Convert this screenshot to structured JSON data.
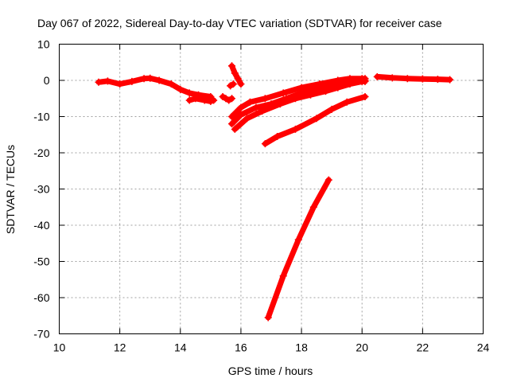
{
  "chart_data": {
    "type": "scatter",
    "title": "Day 067 of 2022, Sidereal Day-to-day VTEC variation (SDTVAR) for receiver case",
    "xlabel": "GPS time / hours",
    "ylabel": "SDTVAR / TECUs",
    "xlim": [
      10,
      24
    ],
    "ylim": [
      -70,
      10
    ],
    "xticks": [
      10,
      12,
      14,
      16,
      18,
      20,
      22,
      24
    ],
    "yticks": [
      10,
      0,
      -10,
      -20,
      -30,
      -40,
      -50,
      -60,
      -70
    ],
    "grid": true,
    "marker": "+",
    "color": "#ff0000",
    "series": [
      {
        "x": [
          11.3,
          11.6,
          12.0,
          12.4,
          12.8,
          13.0,
          13.3,
          13.7,
          14.0,
          14.3,
          14.6,
          15.0
        ],
        "y": [
          -0.5,
          -0.2,
          -1.0,
          -0.3,
          0.5,
          0.6,
          0.0,
          -1.0,
          -2.5,
          -3.5,
          -4.0,
          -4.5
        ]
      },
      {
        "x": [
          14.3,
          14.5,
          14.8,
          15.0,
          15.1
        ],
        "y": [
          -5.5,
          -5.0,
          -5.5,
          -5.8,
          -5.5
        ]
      },
      {
        "x": [
          15.4,
          15.5,
          15.6,
          15.7
        ],
        "y": [
          -4.5,
          -5.0,
          -5.5,
          -5.0
        ]
      },
      {
        "x": [
          15.7,
          15.8,
          15.9,
          16.0
        ],
        "y": [
          4.0,
          2.0,
          0.5,
          -1.0
        ]
      },
      {
        "x": [
          15.65,
          15.75
        ],
        "y": [
          -1.5,
          -1.0
        ]
      },
      {
        "x": [
          15.7,
          16.0,
          16.3,
          16.8,
          17.4,
          18.0,
          18.6,
          19.2,
          19.6,
          20.0,
          20.1
        ],
        "y": [
          -10.0,
          -7.5,
          -6.0,
          -5.0,
          -3.5,
          -2.0,
          -1.0,
          0.0,
          0.5,
          0.5,
          0.5
        ]
      },
      {
        "x": [
          15.7,
          16.0,
          16.5,
          17.0,
          17.5,
          18.0,
          18.5,
          19.0,
          19.5,
          20.0,
          20.1
        ],
        "y": [
          -12.0,
          -9.5,
          -7.5,
          -6.5,
          -5.0,
          -3.5,
          -2.5,
          -1.5,
          -0.5,
          0.0,
          0.0
        ]
      },
      {
        "x": [
          15.8,
          16.2,
          16.7,
          17.3,
          17.8,
          18.3,
          18.8,
          19.2,
          19.6,
          20.0,
          20.1
        ],
        "y": [
          -13.5,
          -10.5,
          -8.5,
          -6.5,
          -5.0,
          -4.0,
          -3.0,
          -2.0,
          -1.0,
          -0.3,
          -0.3
        ]
      },
      {
        "x": [
          16.8,
          17.2,
          17.8,
          18.5,
          19.0,
          19.5,
          20.1
        ],
        "y": [
          -17.5,
          -15.5,
          -13.5,
          -10.5,
          -8.0,
          -6.0,
          -4.5
        ]
      },
      {
        "x": [
          16.9,
          17.4,
          17.9,
          18.4,
          18.9
        ],
        "y": [
          -65.5,
          -54.0,
          -44.0,
          -35.0,
          -27.5
        ]
      },
      {
        "x": [
          20.5,
          21.0,
          21.5,
          22.0,
          22.5,
          22.9
        ],
        "y": [
          1.0,
          0.7,
          0.5,
          0.4,
          0.3,
          0.2
        ]
      }
    ]
  }
}
